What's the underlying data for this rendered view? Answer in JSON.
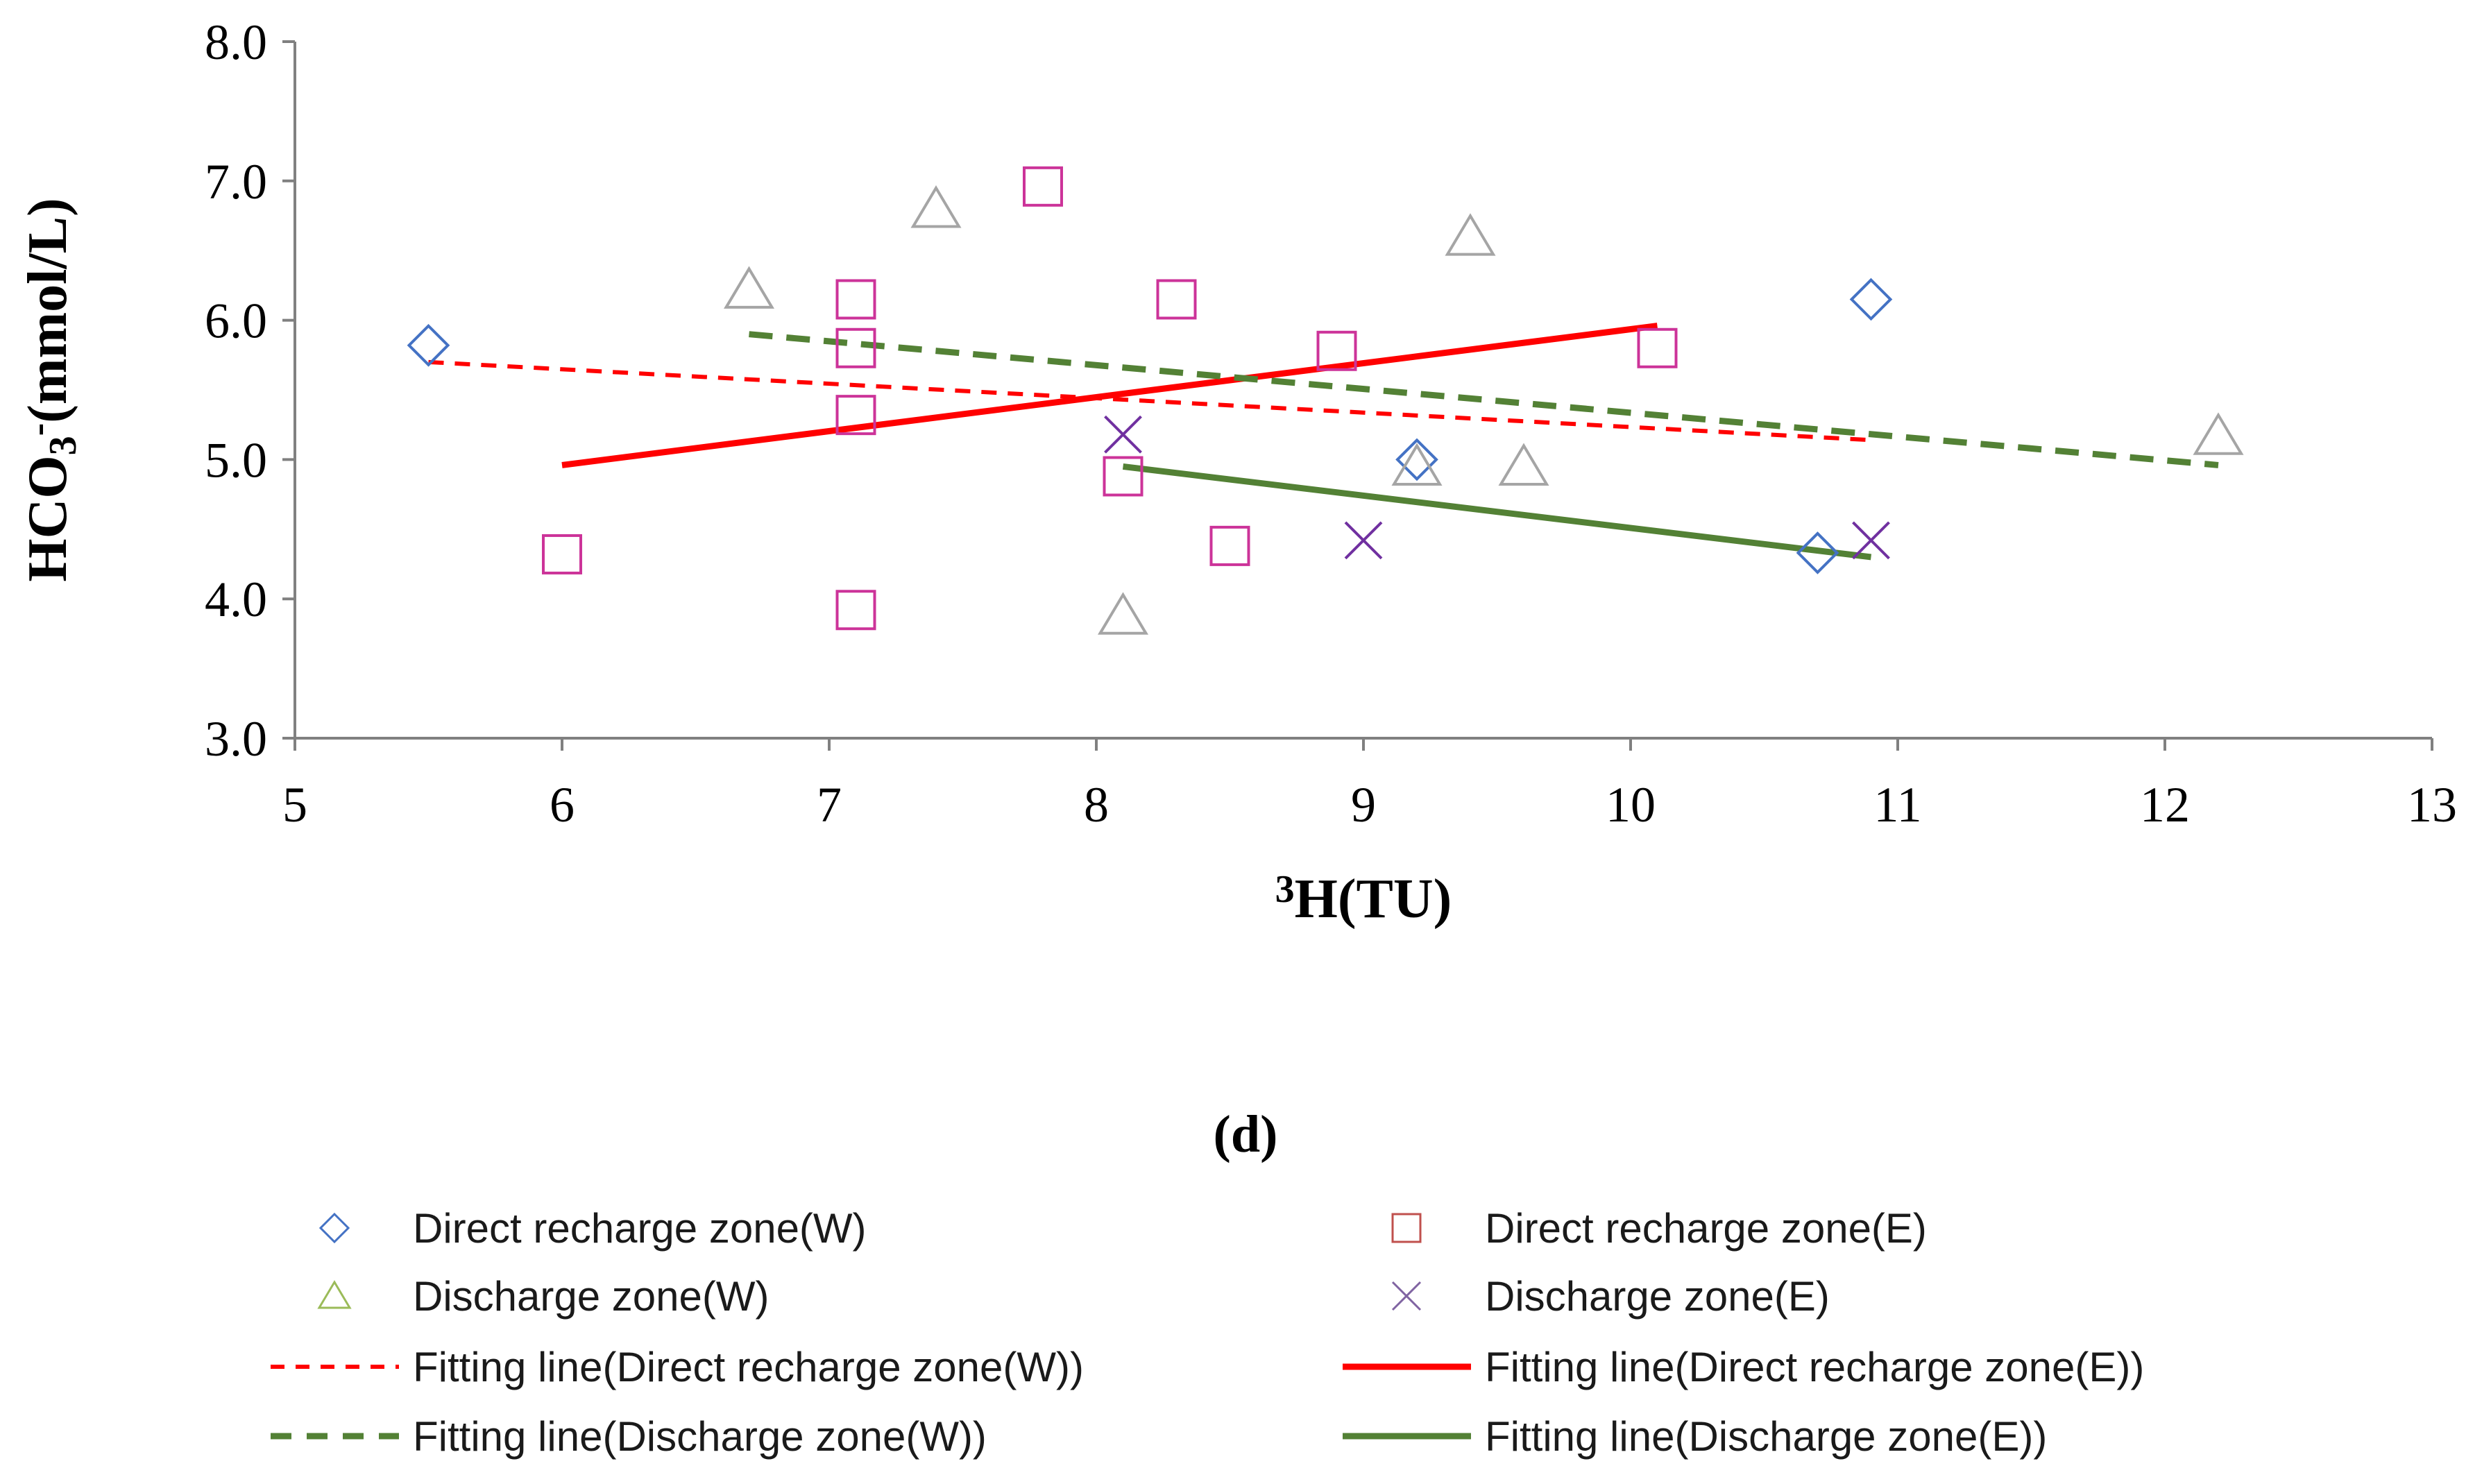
{
  "chart_data": {
    "type": "scatter",
    "title": "",
    "panel_label": "d",
    "xlabel": {
      "sup": "3",
      "text": "H(TU)"
    },
    "ylabel": {
      "base": "HCO",
      "sub": "3",
      "sup": "-",
      "rest": "(mmol/L)"
    },
    "xlim": [
      5,
      13
    ],
    "ylim": [
      3.0,
      8.0
    ],
    "x_ticks": [
      5,
      6,
      7,
      8,
      9,
      10,
      11,
      12,
      13
    ],
    "x_tick_labels": [
      "5",
      "6",
      "7",
      "8",
      "9",
      "10",
      "11",
      "12",
      "13"
    ],
    "y_ticks": [
      3.0,
      4.0,
      5.0,
      6.0,
      7.0,
      8.0
    ],
    "y_tick_labels": [
      "3.0",
      "4.0",
      "5.0",
      "6.0",
      "7.0",
      "8.0"
    ],
    "grid": false,
    "legend_position": "bottom",
    "series": [
      {
        "name": "Direct recharge zone(W)",
        "marker": "diamond",
        "color": "#4472C4",
        "points": [
          [
            5.5,
            5.82
          ],
          [
            9.2,
            5.0
          ],
          [
            10.7,
            4.33
          ],
          [
            10.9,
            6.15
          ]
        ]
      },
      {
        "name": "Direct recharge zone(E)",
        "marker": "square",
        "color": "#CC3399",
        "legend_color": "#C0504D",
        "points": [
          [
            6.0,
            4.32
          ],
          [
            7.1,
            3.92
          ],
          [
            7.1,
            5.32
          ],
          [
            7.1,
            5.8
          ],
          [
            7.1,
            6.15
          ],
          [
            7.8,
            6.96
          ],
          [
            8.1,
            4.88
          ],
          [
            8.3,
            6.15
          ],
          [
            8.5,
            4.38
          ],
          [
            8.9,
            5.78
          ],
          [
            10.1,
            5.8
          ]
        ]
      },
      {
        "name": "Discharge zone(W)",
        "marker": "triangle",
        "color": "#A5A5A5",
        "legend_color": "#9BBB59",
        "points": [
          [
            6.7,
            6.22
          ],
          [
            7.4,
            6.8
          ],
          [
            8.1,
            3.88
          ],
          [
            9.2,
            4.95
          ],
          [
            9.4,
            6.6
          ],
          [
            9.6,
            4.95
          ],
          [
            12.2,
            5.17
          ]
        ]
      },
      {
        "name": "Discharge zone(E)",
        "marker": "x",
        "color": "#7030A0",
        "legend_color": "#8064A2",
        "points": [
          [
            8.1,
            5.18
          ],
          [
            9.0,
            4.42
          ],
          [
            10.9,
            4.42
          ]
        ]
      }
    ],
    "fit_lines": [
      {
        "name": "Fitting line(Direct recharge zone(W))",
        "color": "#FF0000",
        "style": "dashed",
        "x": [
          5.5,
          10.9
        ],
        "y": [
          5.7,
          5.14
        ]
      },
      {
        "name": "Fitting line(Direct recharge zone(E))",
        "color": "#FF0000",
        "style": "solid",
        "x": [
          6.0,
          10.1
        ],
        "y": [
          4.96,
          5.96
        ]
      },
      {
        "name": "Fitting line(Discharge zone(W))",
        "color": "#538135",
        "style": "dashed",
        "x": [
          6.7,
          12.2
        ],
        "y": [
          5.9,
          4.96
        ]
      },
      {
        "name": "Fitting line(Discharge zone(E))",
        "color": "#538135",
        "style": "solid",
        "x": [
          8.1,
          10.9
        ],
        "y": [
          4.95,
          4.3
        ]
      }
    ]
  }
}
